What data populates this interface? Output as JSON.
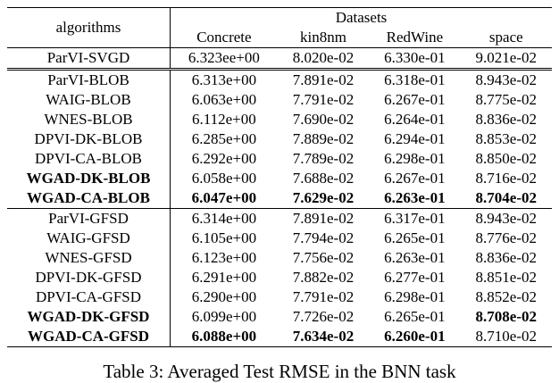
{
  "table": {
    "header": {
      "corner": "algorithms",
      "group": "Datasets",
      "columns": [
        "Concrete",
        "kin8nm",
        "RedWine",
        "space"
      ]
    },
    "groups": [
      {
        "rows": [
          {
            "cells": [
              "ParVI-SVGD",
              "6.323ee+00",
              "8.020e-02",
              "6.330e-01",
              "9.021e-02"
            ],
            "bold": [
              false,
              false,
              false,
              false,
              false
            ]
          }
        ]
      },
      {
        "rows": [
          {
            "cells": [
              "ParVI-BLOB",
              "6.313e+00",
              "7.891e-02",
              "6.318e-01",
              "8.943e-02"
            ],
            "bold": [
              false,
              false,
              false,
              false,
              false
            ]
          },
          {
            "cells": [
              "WAIG-BLOB",
              "6.063e+00",
              "7.791e-02",
              "6.267e-01",
              "8.775e-02"
            ],
            "bold": [
              false,
              false,
              false,
              false,
              false
            ]
          },
          {
            "cells": [
              "WNES-BLOB",
              "6.112e+00",
              "7.690e-02",
              "6.264e-01",
              "8.836e-02"
            ],
            "bold": [
              false,
              false,
              false,
              false,
              false
            ]
          },
          {
            "cells": [
              "DPVI-DK-BLOB",
              "6.285e+00",
              "7.889e-02",
              "6.294e-01",
              "8.853e-02"
            ],
            "bold": [
              false,
              false,
              false,
              false,
              false
            ]
          },
          {
            "cells": [
              "DPVI-CA-BLOB",
              "6.292e+00",
              "7.789e-02",
              "6.298e-01",
              "8.850e-02"
            ],
            "bold": [
              false,
              false,
              false,
              false,
              false
            ]
          },
          {
            "cells": [
              "WGAD-DK-BLOB",
              "6.058e+00",
              "7.688e-02",
              "6.267e-01",
              "8.716e-02"
            ],
            "bold": [
              true,
              false,
              false,
              false,
              false
            ]
          },
          {
            "cells": [
              "WGAD-CA-BLOB",
              "6.047e+00",
              "7.629e-02",
              "6.263e-01",
              "8.704e-02"
            ],
            "bold": [
              true,
              true,
              true,
              true,
              true
            ]
          }
        ]
      },
      {
        "rows": [
          {
            "cells": [
              "ParVI-GFSD",
              "6.314e+00",
              "7.891e-02",
              "6.317e-01",
              "8.943e-02"
            ],
            "bold": [
              false,
              false,
              false,
              false,
              false
            ]
          },
          {
            "cells": [
              "WAIG-GFSD",
              "6.105e+00",
              "7.794e-02",
              "6.265e-01",
              "8.776e-02"
            ],
            "bold": [
              false,
              false,
              false,
              false,
              false
            ]
          },
          {
            "cells": [
              "WNES-GFSD",
              "6.123e+00",
              "7.756e-02",
              "6.263e-01",
              "8.836e-02"
            ],
            "bold": [
              false,
              false,
              false,
              false,
              false
            ]
          },
          {
            "cells": [
              "DPVI-DK-GFSD",
              "6.291e+00",
              "7.882e-02",
              "6.277e-01",
              "8.851e-02"
            ],
            "bold": [
              false,
              false,
              false,
              false,
              false
            ]
          },
          {
            "cells": [
              "DPVI-CA-GFSD",
              "6.290e+00",
              "7.791e-02",
              "6.298e-01",
              "8.852e-02"
            ],
            "bold": [
              false,
              false,
              false,
              false,
              false
            ]
          },
          {
            "cells": [
              "WGAD-DK-GFSD",
              "6.099e+00",
              "7.726e-02",
              "6.265e-01",
              "8.708e-02"
            ],
            "bold": [
              true,
              false,
              false,
              false,
              true
            ]
          },
          {
            "cells": [
              "WGAD-CA-GFSD",
              "6.088e+00",
              "7.634e-02",
              "6.260e-01",
              "8.710e-02"
            ],
            "bold": [
              true,
              true,
              true,
              true,
              false
            ]
          }
        ]
      }
    ],
    "caption": "Table 3: Averaged Test RMSE in the BNN task"
  }
}
